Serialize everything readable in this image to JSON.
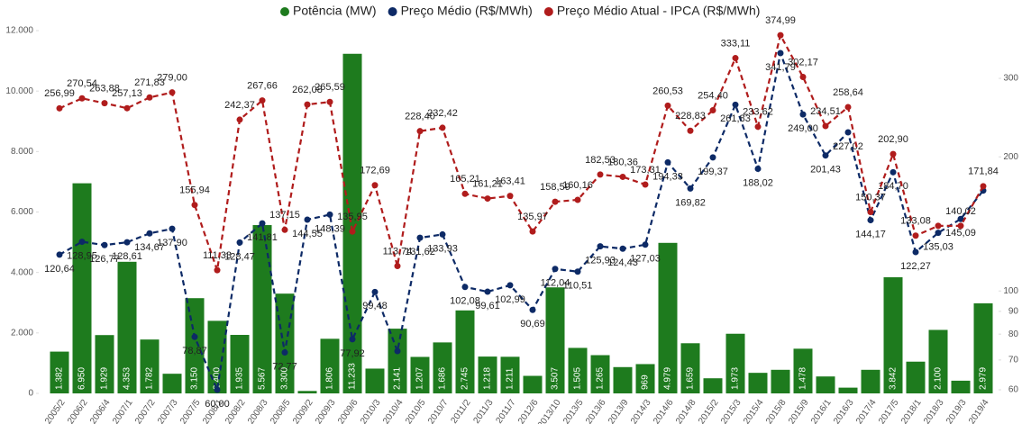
{
  "chart_data": {
    "type": "combo",
    "categories": [
      "2005/2",
      "2006/2",
      "2006/4",
      "2007/1",
      "2007/2",
      "2007/3",
      "2007/5",
      "2008/1",
      "2008/2",
      "2008/3",
      "2008/5",
      "2009/2",
      "2009/3",
      "2009/6",
      "2010/3",
      "2010/4",
      "2010/5",
      "2010/7",
      "2011/2",
      "2011/3",
      "2011/7",
      "2012/6",
      "2013/10",
      "2013/5",
      "2013/6",
      "2013/9",
      "2014/3",
      "2014/6",
      "2014/8",
      "2015/2",
      "2015/3",
      "2015/4",
      "2015/8",
      "2015/9",
      "2016/1",
      "2016/3",
      "2017/4",
      "2017/5",
      "2018/1",
      "2018/3",
      "2019/3",
      "2019/4"
    ],
    "series": [
      {
        "name": "Potência (MW)",
        "type": "bar",
        "color": "#1e7b1e",
        "values": [
          1382,
          6950,
          1929,
          4353,
          1782,
          650,
          3150,
          2400,
          1935,
          5567,
          3300,
          80,
          1806,
          11233,
          820,
          2141,
          1207,
          1686,
          2745,
          1218,
          1211,
          580,
          3507,
          1505,
          1265,
          870,
          969,
          4979,
          1659,
          500,
          1973,
          680,
          780,
          1478,
          560,
          190,
          780,
          3842,
          1050,
          2100,
          420,
          2979
        ],
        "value_labels": [
          "1.382",
          "6.950",
          "1.929",
          "4.353",
          "1.782",
          null,
          "3.150",
          "2.400",
          "1.935",
          "5.567",
          "3.300",
          null,
          "1.806",
          "11.233",
          null,
          "2.141",
          "1.207",
          "1.686",
          "2.745",
          "1.218",
          "1.211",
          null,
          "3.507",
          "1.505",
          "1.265",
          null,
          "969",
          "4.979",
          "1.659",
          null,
          "1.973",
          null,
          null,
          "1.478",
          null,
          null,
          null,
          "3.842",
          null,
          "2.100",
          null,
          "2.979"
        ]
      },
      {
        "name": "Preço Médio (R$/MWh)",
        "type": "line",
        "axis": "y2",
        "color": "#0d2a66",
        "values": [
          120.64,
          128.95,
          126.77,
          128.61,
          134.67,
          137.9,
          78.87,
          60.0,
          128.47,
          141.81,
          72.77,
          144.55,
          148.39,
          77.92,
          99.48,
          73.3,
          131.62,
          133.93,
          102.08,
          99.61,
          102.99,
          90.69,
          112.04,
          110.51,
          125.93,
          124.43,
          127.03,
          194.33,
          169.82,
          199.37,
          261.83,
          188.02,
          341.79,
          249.0,
          201.43,
          227.02,
          144.17,
          184.7,
          122.27,
          135.03,
          145.09,
          168
        ],
        "value_labels": [
          "120,64",
          "128,95",
          "126,77",
          "128,61",
          "134,67",
          "137,90",
          "78,87",
          "60,00",
          "128,47",
          "141,81",
          "72,77",
          "144,55",
          "148,39",
          "77,92",
          "99,48",
          null,
          "131,62",
          "133,93",
          "102,08",
          "99,61",
          "102,99",
          "90,69",
          "112,04",
          "110,51",
          "125,93",
          "124,43",
          "127,03",
          "194,33",
          "169,82",
          "199,37",
          "261,83",
          "188,02",
          "341,79",
          "249,00",
          "201,43",
          "227,02",
          "144,17",
          "184,70",
          "122,27",
          "135,03",
          "145,09",
          null
        ]
      },
      {
        "name": "Preço Médio Atual - IPCA (R$/MWh)",
        "type": "line",
        "axis": "y2",
        "color": "#b01c1c",
        "values": [
          256.99,
          270.54,
          263.88,
          257.13,
          271.83,
          279.0,
          155.94,
          111.33,
          242.37,
          267.66,
          137.15,
          262.08,
          265.59,
          135.95,
          172.69,
          113.74,
          228.4,
          232.42,
          165.21,
          161.21,
          163.41,
          135.97,
          158.59,
          160.16,
          182.53,
          180.36,
          173.31,
          260.53,
          228.83,
          254.4,
          333.11,
          233.62,
          374.99,
          302.17,
          234.51,
          258.64,
          150.37,
          202.9,
          133.08,
          140,
          140.02,
          171.84
        ],
        "value_labels": [
          "256,99",
          "270,54",
          "263,88",
          "257,13",
          "271,83",
          "279,00",
          "155,94",
          "111,33",
          "242,37",
          "267,66",
          "137,15",
          "262,08",
          "265,59",
          "135,95",
          "172,69",
          "113,74",
          "228,40",
          "232,42",
          "165,21",
          "161,21",
          "163,41",
          "135,97",
          "158,59",
          "160,16",
          "182,53",
          "180,36",
          "173,31",
          "260,53",
          "228,83",
          "254,40",
          "333,11",
          "233,62",
          "374,99",
          "302,17",
          "234,51",
          "258,64",
          "150,37",
          "202,90",
          "133,08",
          null,
          "140,02",
          "171,84"
        ]
      }
    ],
    "ylim": [
      0,
      12000
    ],
    "yticks": [
      0,
      {
        "value": 2000,
        "label": "2.000"
      },
      {
        "value": 4000,
        "label": "4.000"
      },
      {
        "value": 6000,
        "label": "6.000"
      },
      {
        "value": 8000,
        "label": "8.000"
      },
      {
        "value": 10000,
        "label": "10.000"
      },
      {
        "value": 12000,
        "label": "12.000"
      }
    ],
    "y2lim": [
      58.9,
      384
    ],
    "y2ticks": [
      60,
      70,
      80,
      90,
      100,
      200,
      300
    ],
    "y2_log_scale": true,
    "legend": "top"
  }
}
